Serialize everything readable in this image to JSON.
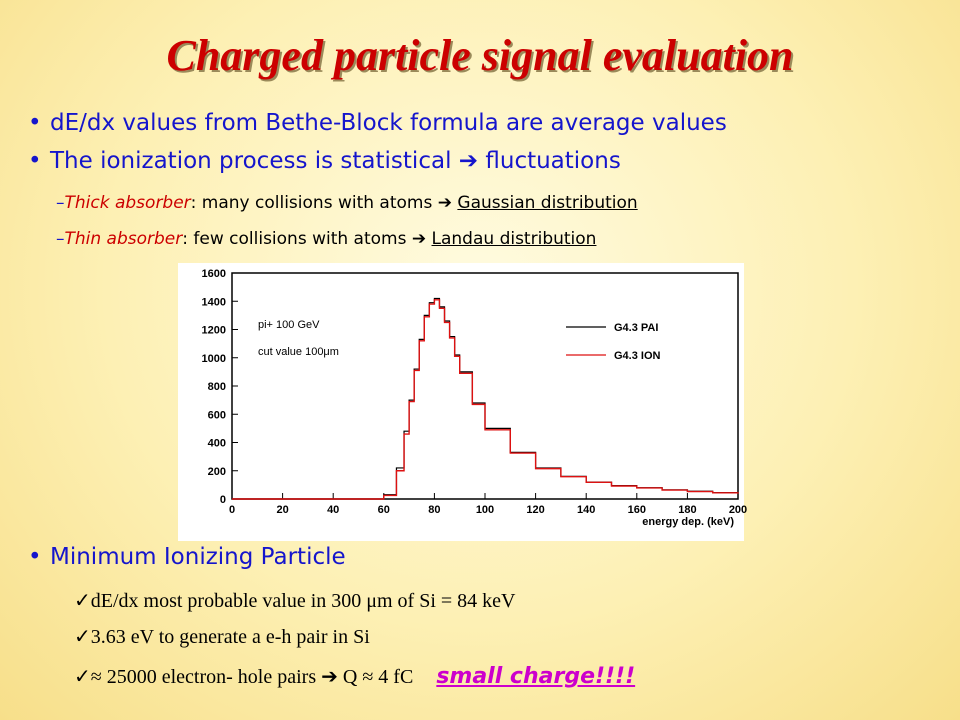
{
  "title": "Charged particle signal evaluation",
  "bullets": [
    "dE/dx values from Bethe-Block formula are average values",
    "The ionization process is statistical",
    "fluctuations"
  ],
  "sub1": {
    "dash": "–",
    "label": "Thick absorber",
    "text": ": many collisions with atoms",
    "result": "Gaussian distribution"
  },
  "sub2": {
    "dash": "–",
    "label": "Thin absorber",
    "text": ": few collisions with atoms",
    "result": "Landau distribution"
  },
  "arrow_icon": "➔",
  "mip": {
    "heading": "Minimum Ionizing Particle"
  },
  "checks": [
    "dE/dx most probable value in 300 μm of Si = 84 keV",
    "3.63 eV to generate a e-h pair in Si",
    "≈ 25000 electron- hole pairs"
  ],
  "check3_tail": "Q ≈ 4 fC",
  "small_charge": "small charge!!!!",
  "chart_data": {
    "type": "line",
    "xlabel": "energy dep. (keV)",
    "xlim": [
      0,
      200
    ],
    "ylim": [
      0,
      1600
    ],
    "xticks": [
      "0",
      "20",
      "40",
      "60",
      "80",
      "100",
      "120",
      "140",
      "160",
      "180",
      "200"
    ],
    "yticks": [
      "0",
      "200",
      "400",
      "600",
      "800",
      "1000",
      "1200",
      "1400",
      "1600"
    ],
    "annotations": [
      "pi+ 100 GeV",
      "cut value 100μm"
    ],
    "series": [
      {
        "name": "G4.3 PAI",
        "color": "#000000",
        "x": [
          55,
          60,
          65,
          68,
          70,
          72,
          74,
          76,
          78,
          80,
          82,
          84,
          86,
          88,
          90,
          95,
          100,
          110,
          120,
          130,
          140,
          150,
          160,
          170,
          180,
          190,
          200
        ],
        "y": [
          0,
          30,
          220,
          480,
          700,
          920,
          1130,
          1300,
          1390,
          1420,
          1360,
          1260,
          1150,
          1020,
          900,
          680,
          500,
          330,
          220,
          160,
          120,
          95,
          80,
          65,
          55,
          45,
          40
        ]
      },
      {
        "name": "G4.3 ION",
        "color": "#dd1111",
        "x": [
          55,
          60,
          65,
          68,
          70,
          72,
          74,
          76,
          78,
          80,
          82,
          84,
          86,
          88,
          90,
          95,
          100,
          110,
          120,
          130,
          140,
          150,
          160,
          170,
          180,
          190,
          200
        ],
        "y": [
          0,
          25,
          200,
          460,
          690,
          910,
          1120,
          1290,
          1380,
          1410,
          1350,
          1250,
          1140,
          1010,
          890,
          670,
          490,
          325,
          215,
          158,
          118,
          92,
          78,
          63,
          53,
          44,
          38
        ]
      }
    ]
  },
  "colors": {
    "title": "#cc0000",
    "bullet": "#1515cc",
    "small_charge": "#cc00cc"
  }
}
